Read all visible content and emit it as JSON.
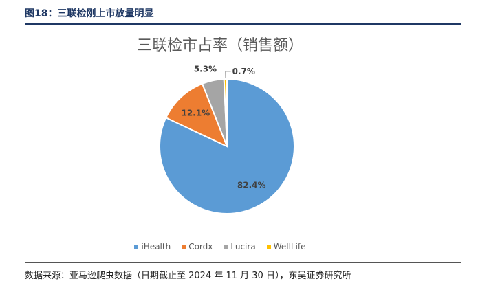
{
  "figure": {
    "caption": "图18：三联检刚上市放量明显",
    "source": "数据来源：亚马逊爬虫数据（日期截止至 2024 年 11 月 30 日），东吴证券研究所"
  },
  "chart_data": {
    "type": "pie",
    "title": "三联检市占率（销售额）",
    "legend_position": "bottom",
    "slices": [
      {
        "name": "iHealth",
        "value": 82.4,
        "label": "82.4%",
        "color": "#5b9bd5"
      },
      {
        "name": "Cordx",
        "value": 12.1,
        "label": "12.1%",
        "color": "#ed7d31"
      },
      {
        "name": "Lucira",
        "value": 5.3,
        "label": "5.3%",
        "color": "#a5a5a5"
      },
      {
        "name": "WellLife",
        "value": 0.7,
        "label": "0.7%",
        "color": "#ffc000"
      }
    ]
  }
}
